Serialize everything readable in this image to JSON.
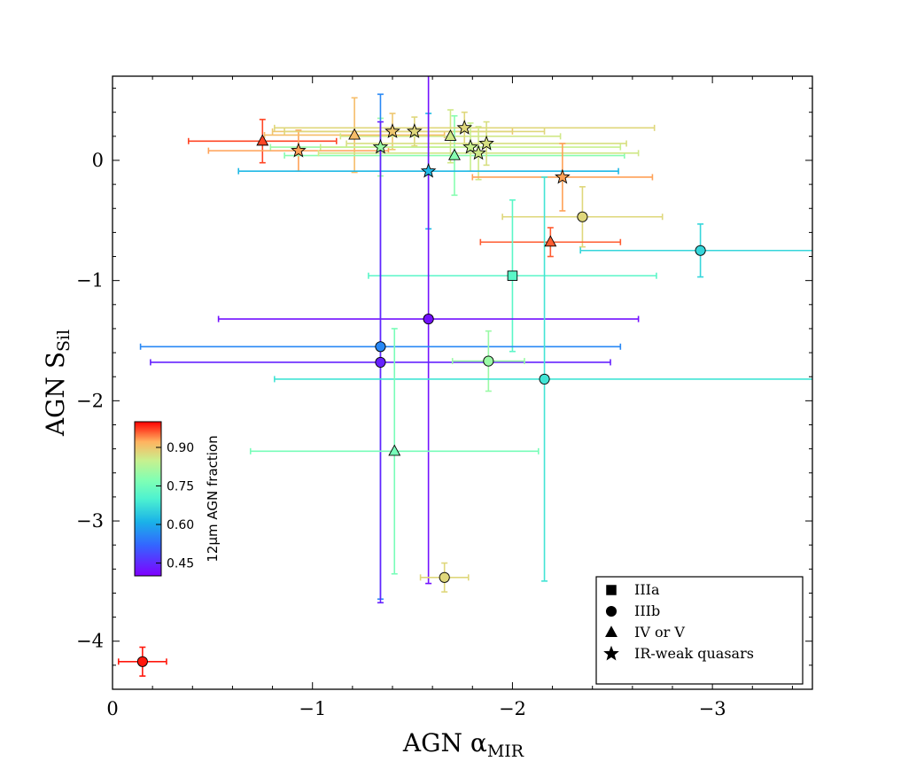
{
  "chart_data": {
    "type": "scatter",
    "title": "",
    "xlabel_main": "AGN α",
    "xlabel_sub": "MIR",
    "ylabel_main": "AGN S",
    "ylabel_sub": "Sil",
    "xlim": [
      0,
      -3.5
    ],
    "ylim": [
      -4.4,
      0.7
    ],
    "x_ticks": [
      0,
      -1,
      -2,
      -3
    ],
    "x_tick_labels": [
      "0",
      "−1",
      "−2",
      "−3"
    ],
    "y_ticks": [
      0,
      -1,
      -2,
      -3,
      -4
    ],
    "y_tick_labels": [
      "0",
      "−1",
      "−2",
      "−3",
      "−4"
    ],
    "colorbar": {
      "title": "12μm AGN fraction",
      "range": [
        0.4,
        1.0
      ],
      "ticks": [
        0.45,
        0.6,
        0.75,
        0.9
      ],
      "tick_labels": [
        "0.45",
        "0.60",
        "0.75",
        "0.90"
      ]
    },
    "legend": {
      "position": "bottom-right",
      "entries": [
        {
          "marker": "square",
          "label": "IIIa"
        },
        {
          "marker": "circle",
          "label": "IIIb"
        },
        {
          "marker": "triangle",
          "label": "IV or V"
        },
        {
          "marker": "star",
          "label": "IR-weak quasars"
        }
      ]
    },
    "points": [
      {
        "x": -0.15,
        "y": -4.17,
        "xerr": 0.12,
        "yerr": 0.12,
        "marker": "circle",
        "frac": 0.99
      },
      {
        "x": -0.75,
        "y": 0.16,
        "xerr": 0.37,
        "yerr": 0.18,
        "marker": "triangle",
        "frac": 0.97
      },
      {
        "x": -0.93,
        "y": 0.08,
        "xerr": 0.45,
        "yerr": 0.17,
        "marker": "star",
        "frac": 0.93
      },
      {
        "x": -1.21,
        "y": 0.21,
        "xerr": 0.45,
        "yerr": 0.31,
        "marker": "triangle",
        "frac": 0.91
      },
      {
        "x": -1.34,
        "y": 0.11,
        "xerr": 0.55,
        "yerr": 0.24,
        "marker": "star",
        "frac": 0.8
      },
      {
        "x": -1.4,
        "y": 0.24,
        "xerr": 0.6,
        "yerr": 0.15,
        "marker": "star",
        "frac": 0.9
      },
      {
        "x": -1.51,
        "y": 0.24,
        "xerr": 0.65,
        "yerr": 0.12,
        "marker": "star",
        "frac": 0.88
      },
      {
        "x": -1.69,
        "y": 0.2,
        "xerr": 0.55,
        "yerr": 0.22,
        "marker": "triangle",
        "frac": 0.86
      },
      {
        "x": -1.71,
        "y": 0.04,
        "xerr": 0.85,
        "yerr": 0.33,
        "marker": "triangle",
        "frac": 0.78
      },
      {
        "x": -1.76,
        "y": 0.27,
        "xerr": 0.95,
        "yerr": 0.13,
        "marker": "star",
        "frac": 0.88
      },
      {
        "x": -1.79,
        "y": 0.11,
        "xerr": 0.75,
        "yerr": 0.2,
        "marker": "star",
        "frac": 0.85
      },
      {
        "x": -1.83,
        "y": 0.06,
        "xerr": 0.8,
        "yerr": 0.22,
        "marker": "star",
        "frac": 0.86
      },
      {
        "x": -1.87,
        "y": 0.14,
        "xerr": 0.7,
        "yerr": 0.18,
        "marker": "star",
        "frac": 0.87
      },
      {
        "x": -1.58,
        "y": -0.09,
        "xerr": 0.95,
        "yerr": 0.48,
        "marker": "star",
        "frac": 0.62
      },
      {
        "x": -2.25,
        "y": -0.14,
        "xerr": 0.45,
        "yerr": 0.28,
        "marker": "star",
        "frac": 0.93
      },
      {
        "x": -2.35,
        "y": -0.47,
        "xerr": 0.4,
        "yerr": 0.25,
        "marker": "circle",
        "frac": 0.88
      },
      {
        "x": -2.19,
        "y": -0.68,
        "xerr": 0.35,
        "yerr": 0.12,
        "marker": "triangle",
        "frac": 0.96
      },
      {
        "x": -2.94,
        "y": -0.75,
        "xerr": 0.6,
        "yerr": 0.22,
        "marker": "circle",
        "frac": 0.66
      },
      {
        "x": -2.0,
        "y": -0.96,
        "xerr": 0.72,
        "yerr": 0.63,
        "marker": "square",
        "frac": 0.72
      },
      {
        "x": -1.58,
        "y": -1.32,
        "xerr": 1.05,
        "yerr": 2.2,
        "marker": "circle",
        "frac": 0.42
      },
      {
        "x": -1.34,
        "y": -1.55,
        "xerr": 1.2,
        "yerr": 2.1,
        "marker": "circle",
        "frac": 0.56
      },
      {
        "x": -1.34,
        "y": -1.68,
        "xerr": 1.15,
        "yerr": 2.0,
        "marker": "circle",
        "frac": 0.44
      },
      {
        "x": -1.88,
        "y": -1.67,
        "xerr": 0.18,
        "yerr": 0.25,
        "marker": "circle",
        "frac": 0.8
      },
      {
        "x": -2.16,
        "y": -1.82,
        "xerr": 1.35,
        "yerr": 1.68,
        "marker": "circle",
        "frac": 0.68
      },
      {
        "x": -1.41,
        "y": -2.42,
        "xerr": 0.72,
        "yerr": 1.02,
        "marker": "triangle",
        "frac": 0.76
      },
      {
        "x": -1.66,
        "y": -3.47,
        "xerr": 0.12,
        "yerr": 0.12,
        "marker": "circle",
        "frac": 0.88
      }
    ]
  }
}
